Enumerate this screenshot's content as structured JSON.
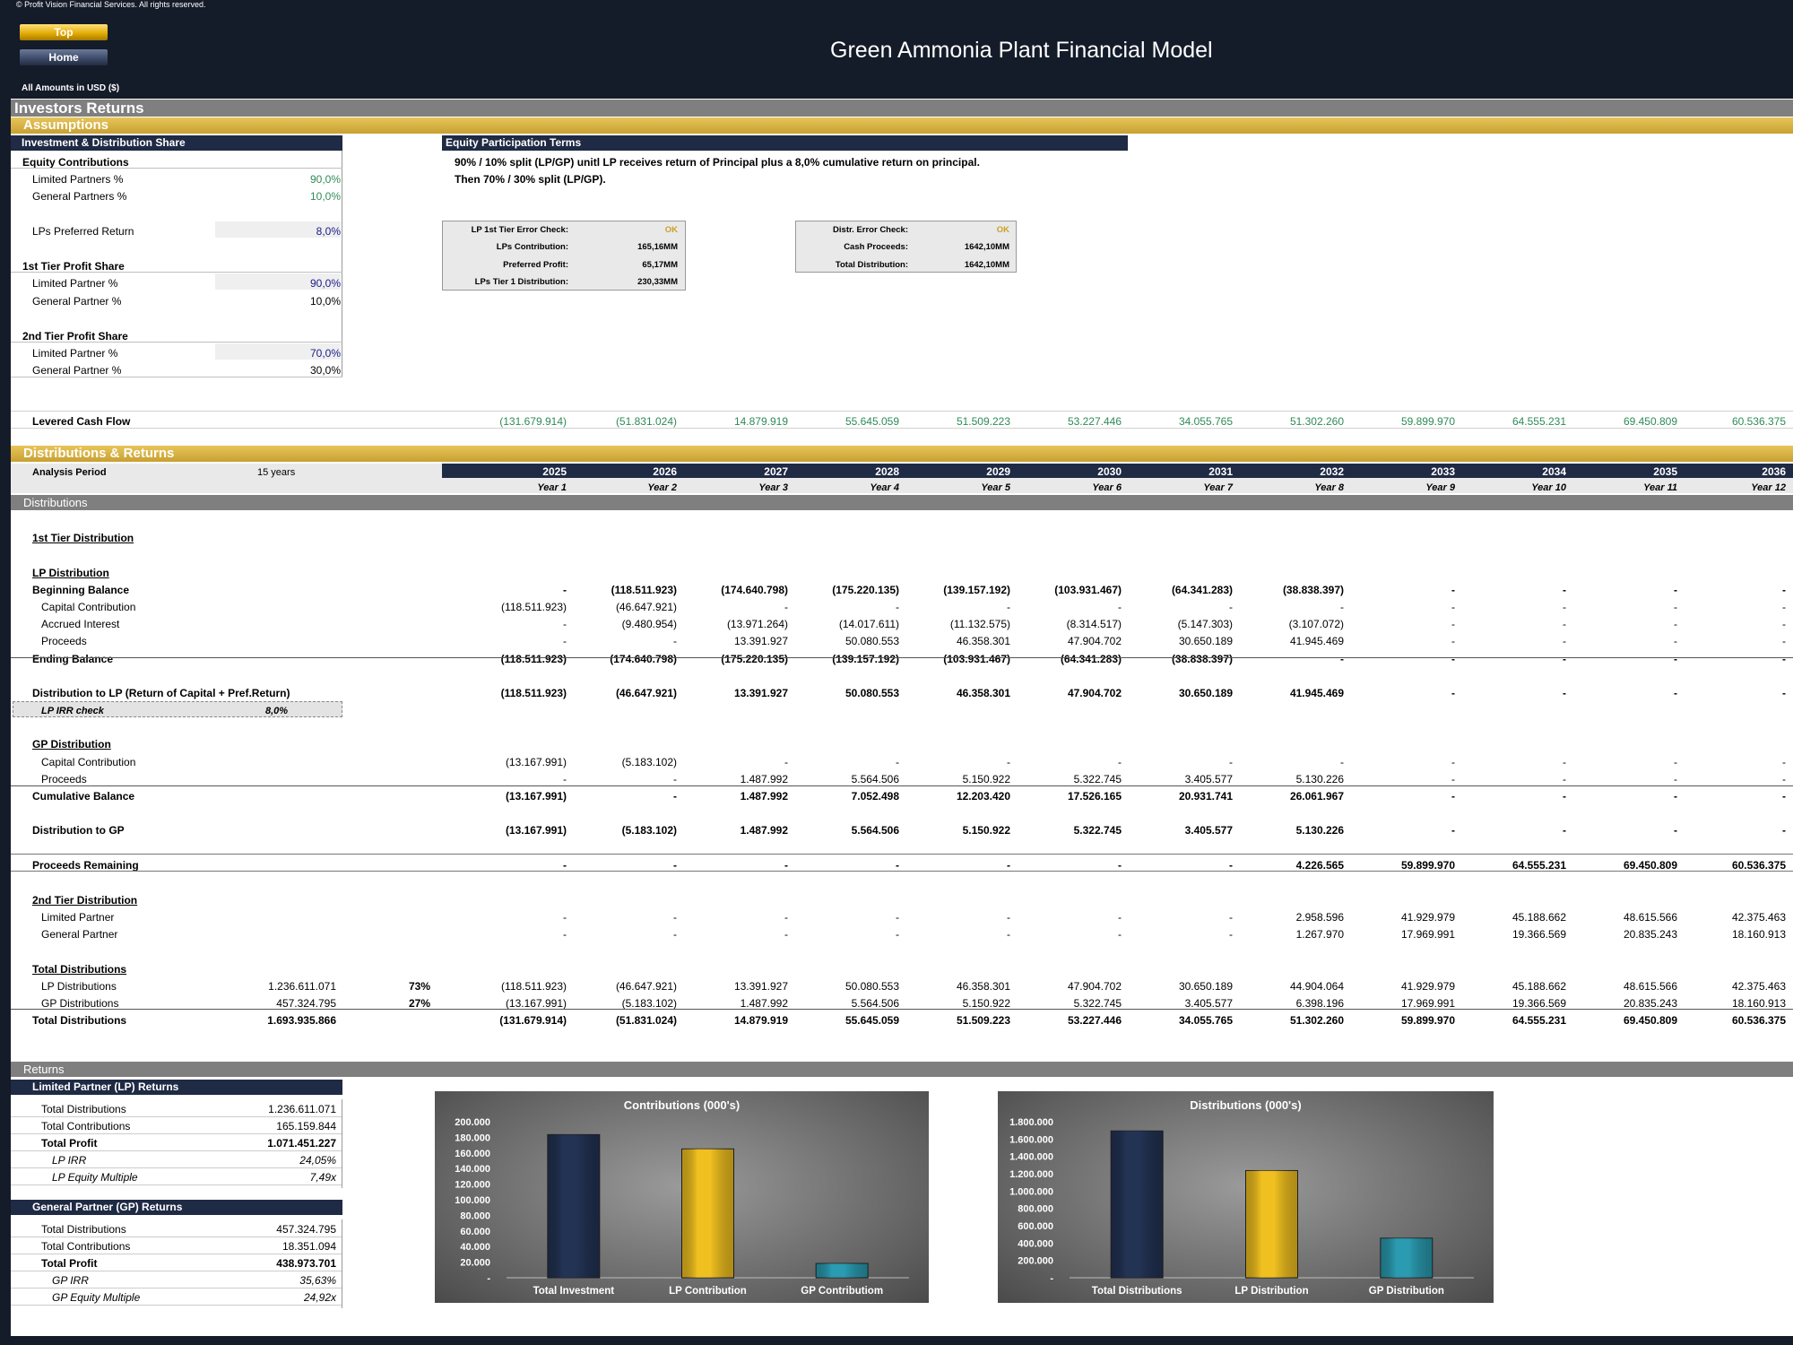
{
  "header": {
    "copyright": "© Profit Vision Financial Services. All rights reserved.",
    "top_button": "Top",
    "home_button": "Home",
    "title": "Green Ammonia Plant Financial Model",
    "amounts": "All Amounts in  USD ($)"
  },
  "sections": {
    "investors_returns": "Investors Returns",
    "assumptions": "Assumptions",
    "distributions_returns": "Distributions & Returns",
    "distributions": "Distributions",
    "returns": "Returns"
  },
  "assumptions": {
    "header": "Investment & Distribution Share",
    "equity_contributions": "Equity Contributions",
    "lp_pct_label": "Limited Partners %",
    "lp_pct": "90,0%",
    "gp_pct_label": "General Partners %",
    "gp_pct": "10,0%",
    "pref_label": "LPs Preferred Return",
    "pref": "8,0%",
    "tier1": "1st Tier Profit Share",
    "t1_lp_label": "Limited Partner %",
    "t1_lp": "90,0%",
    "t1_gp_label": "General Partner %",
    "t1_gp": "10,0%",
    "tier2": "2nd Tier Profit Share",
    "t2_lp_label": "Limited Partner %",
    "t2_lp": "70,0%",
    "t2_gp_label": "General Partner %",
    "t2_gp": "30,0%"
  },
  "equity_terms": {
    "header": "Equity Participation Terms",
    "line1": "90% / 10% split (LP/GP) unitl LP receives return of Principal plus a 8,0% cumulative return on principal.",
    "line2": "Then 70% / 30% split (LP/GP)."
  },
  "check_box_1": {
    "rows": [
      {
        "label": "LP 1st Tier Error Check:",
        "value": "OK"
      },
      {
        "label": "LPs Contribution:",
        "value": "165,16MM"
      },
      {
        "label": "Preferred Profit:",
        "value": "65,17MM"
      },
      {
        "label": "LPs Tier 1 Distribution:",
        "value": "230,33MM"
      }
    ]
  },
  "check_box_2": {
    "rows": [
      {
        "label": "Distr. Error Check:",
        "value": "OK"
      },
      {
        "label": "Cash Proceeds:",
        "value": "1642,10MM"
      },
      {
        "label": "Total Distribution:",
        "value": "1642,10MM"
      }
    ]
  },
  "levered": {
    "label": "Levered Cash Flow",
    "values": [
      "(131.679.914)",
      "(51.831.024)",
      "14.879.919",
      "55.645.059",
      "51.509.223",
      "53.227.446",
      "34.055.765",
      "51.302.260",
      "59.899.970",
      "64.555.231",
      "69.450.809",
      "60.536.375"
    ]
  },
  "period": {
    "label": "Analysis Period",
    "value": "15 years",
    "years": [
      "2025",
      "2026",
      "2027",
      "2028",
      "2029",
      "2030",
      "2031",
      "2032",
      "2033",
      "2034",
      "2035",
      "2036"
    ],
    "year_labels": [
      "Year 1",
      "Year 2",
      "Year 3",
      "Year 4",
      "Year 5",
      "Year 6",
      "Year 7",
      "Year 8",
      "Year 9",
      "Year 10",
      "Year 11",
      "Year 12"
    ]
  },
  "dist": {
    "tier1": "1st Tier Distribution",
    "lp_dist": "LP Distribution",
    "rows": [
      {
        "label": "Beginning Balance",
        "style": "b",
        "values": [
          "-",
          "(118.511.923)",
          "(174.640.798)",
          "(175.220.135)",
          "(139.157.192)",
          "(103.931.467)",
          "(64.341.283)",
          "(38.838.397)",
          "-",
          "-",
          "-",
          "-"
        ]
      },
      {
        "label": "Capital Contribution",
        "style": "ind",
        "values": [
          "(118.511.923)",
          "(46.647.921)",
          "-",
          "-",
          "-",
          "-",
          "-",
          "-",
          "-",
          "-",
          "-",
          "-"
        ]
      },
      {
        "label": "Accrued Interest",
        "style": "ind",
        "values": [
          "-",
          "(9.480.954)",
          "(13.971.264)",
          "(14.017.611)",
          "(11.132.575)",
          "(8.314.517)",
          "(5.147.303)",
          "(3.107.072)",
          "-",
          "-",
          "-",
          "-"
        ]
      },
      {
        "label": "Proceeds",
        "style": "ind",
        "values": [
          "-",
          "-",
          "13.391.927",
          "50.080.553",
          "46.358.301",
          "47.904.702",
          "30.650.189",
          "41.945.469",
          "-",
          "-",
          "-",
          "-"
        ]
      },
      {
        "label": "Ending Balance",
        "style": "b",
        "values": [
          "(118.511.923)",
          "(174.640.798)",
          "(175.220.135)",
          "(139.157.192)",
          "(103.931.467)",
          "(64.341.283)",
          "(38.838.397)",
          "-",
          "-",
          "-",
          "-",
          "-"
        ]
      },
      {
        "label": "Distribution to LP (Return of Capital + Pref.Return)",
        "style": "b",
        "values": [
          "(118.511.923)",
          "(46.647.921)",
          "13.391.927",
          "50.080.553",
          "46.358.301",
          "47.904.702",
          "30.650.189",
          "41.945.469",
          "-",
          "-",
          "-",
          "-"
        ]
      }
    ],
    "irr_check_label": "LP IRR check",
    "irr_check": "8,0%",
    "gp_dist": "GP Distribution",
    "gp_rows": [
      {
        "label": "Capital Contribution",
        "style": "ind",
        "values": [
          "(13.167.991)",
          "(5.183.102)",
          "-",
          "-",
          "-",
          "-",
          "-",
          "-",
          "-",
          "-",
          "-",
          "-"
        ]
      },
      {
        "label": "Proceeds",
        "style": "ind",
        "values": [
          "-",
          "-",
          "1.487.992",
          "5.564.506",
          "5.150.922",
          "5.322.745",
          "3.405.577",
          "5.130.226",
          "-",
          "-",
          "-",
          "-"
        ]
      },
      {
        "label": "Cumulative Balance",
        "style": "b",
        "values": [
          "(13.167.991)",
          "-",
          "1.487.992",
          "7.052.498",
          "12.203.420",
          "17.526.165",
          "20.931.741",
          "26.061.967",
          "-",
          "-",
          "-",
          "-"
        ]
      },
      {
        "label": "Distribution to GP",
        "style": "b",
        "values": [
          "(13.167.991)",
          "(5.183.102)",
          "1.487.992",
          "5.564.506",
          "5.150.922",
          "5.322.745",
          "3.405.577",
          "5.130.226",
          "-",
          "-",
          "-",
          "-"
        ]
      },
      {
        "label": "Proceeds Remaining",
        "style": "b",
        "values": [
          "-",
          "-",
          "-",
          "-",
          "-",
          "-",
          "-",
          "4.226.565",
          "59.899.970",
          "64.555.231",
          "69.450.809",
          "60.536.375"
        ]
      }
    ],
    "tier2": "2nd Tier Distribution",
    "t2_rows": [
      {
        "label": "Limited Partner",
        "style": "ind",
        "values": [
          "-",
          "-",
          "-",
          "-",
          "-",
          "-",
          "-",
          "2.958.596",
          "41.929.979",
          "45.188.662",
          "48.615.566",
          "42.375.463"
        ]
      },
      {
        "label": "General Partner",
        "style": "ind",
        "values": [
          "-",
          "-",
          "-",
          "-",
          "-",
          "-",
          "-",
          "1.267.970",
          "17.969.991",
          "19.366.569",
          "20.835.243",
          "18.160.913"
        ]
      }
    ],
    "total_title": "Total Distributions",
    "tot_rows": [
      {
        "label": "LP Distributions",
        "style": "ind",
        "total": "1.236.611.071",
        "pct": "73%",
        "values": [
          "(118.511.923)",
          "(46.647.921)",
          "13.391.927",
          "50.080.553",
          "46.358.301",
          "47.904.702",
          "30.650.189",
          "44.904.064",
          "41.929.979",
          "45.188.662",
          "48.615.566",
          "42.375.463"
        ]
      },
      {
        "label": "GP Distributions",
        "style": "ind",
        "total": "457.324.795",
        "pct": "27%",
        "values": [
          "(13.167.991)",
          "(5.183.102)",
          "1.487.992",
          "5.564.506",
          "5.150.922",
          "5.322.745",
          "3.405.577",
          "6.398.196",
          "17.969.991",
          "19.366.569",
          "20.835.243",
          "18.160.913"
        ]
      },
      {
        "label": "Total Distributions",
        "style": "b",
        "total": "1.693.935.866",
        "pct": "",
        "values": [
          "(131.679.914)",
          "(51.831.024)",
          "14.879.919",
          "55.645.059",
          "51.509.223",
          "53.227.446",
          "34.055.765",
          "51.302.260",
          "59.899.970",
          "64.555.231",
          "69.450.809",
          "60.536.375"
        ]
      }
    ]
  },
  "lp_returns": {
    "header": "Limited Partner (LP) Returns",
    "rows": [
      {
        "label": "Total Distributions",
        "value": "1.236.611.071",
        "style": "n"
      },
      {
        "label": "Total Contributions",
        "value": "165.159.844",
        "style": "n"
      },
      {
        "label": "Total Profit",
        "value": "1.071.451.227",
        "style": "b"
      },
      {
        "label": "LP IRR",
        "value": "24,05%",
        "style": "i"
      },
      {
        "label": "LP Equity Multiple",
        "value": "7,49x",
        "style": "i"
      }
    ]
  },
  "gp_returns": {
    "header": "General Partner (GP) Returns",
    "rows": [
      {
        "label": "Total Distributions",
        "value": "457.324.795",
        "style": "n"
      },
      {
        "label": "Total Contributions",
        "value": "18.351.094",
        "style": "n"
      },
      {
        "label": "Total Profit",
        "value": "438.973.701",
        "style": "b"
      },
      {
        "label": "GP IRR",
        "value": "35,63%",
        "style": "i"
      },
      {
        "label": "GP Equity Multiple",
        "value": "24,92x",
        "style": "i"
      }
    ]
  },
  "chart_data": [
    {
      "type": "bar",
      "title": "Contributions (000's)",
      "categories": [
        "Total Investment",
        "LP Contribution",
        "GP Contributiom"
      ],
      "values": [
        183511,
        165160,
        18351
      ],
      "ylim": [
        0,
        200000
      ],
      "yticks": [
        "-",
        "20.000",
        "40.000",
        "60.000",
        "80.000",
        "100.000",
        "120.000",
        "140.000",
        "160.000",
        "180.000",
        "200.000"
      ],
      "colors": [
        "#233354",
        "#f0c020",
        "#2a9bb0"
      ]
    },
    {
      "type": "bar",
      "title": "Distributions (000's)",
      "categories": [
        "Total Distributions",
        "LP Distribution",
        "GP Distribution"
      ],
      "values": [
        1693936,
        1236611,
        457325
      ],
      "ylim": [
        0,
        1800000
      ],
      "yticks": [
        "-",
        "200.000",
        "400.000",
        "600.000",
        "800.000",
        "1.000.000",
        "1.200.000",
        "1.400.000",
        "1.600.000",
        "1.800.000"
      ],
      "colors": [
        "#233354",
        "#f0c020",
        "#2a9bb0"
      ]
    }
  ]
}
